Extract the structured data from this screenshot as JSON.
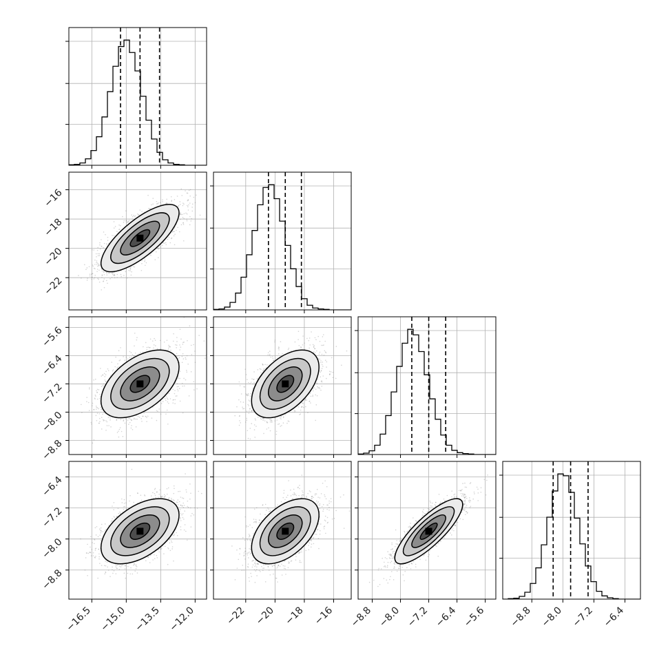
{
  "chart_data": {
    "type": "scatter",
    "layout": "corner-plot",
    "grid": true,
    "colors": {
      "ink": "#000000",
      "grid": "#b0b0b0",
      "points": "#808080",
      "fill": "#000000"
    },
    "parameters": [
      {
        "range": [
          -17.5,
          -11.5
        ],
        "mean": -14.4,
        "sd": 0.85,
        "quantiles": [
          -15.25,
          -14.4,
          -13.55
        ],
        "ticks": [
          -16.5,
          -15.0,
          -13.5,
          -12.0
        ],
        "tick_labels": [
          "−16.5",
          "−15.0",
          "−13.5",
          "−12.0"
        ]
      },
      {
        "range": [
          -24.2,
          -14.8
        ],
        "mean": -19.3,
        "sd": 1.15,
        "quantiles": [
          -20.45,
          -19.3,
          -18.2
        ],
        "ticks": [
          -22,
          -20,
          -18,
          -16
        ],
        "tick_labels": [
          "−22",
          "−20",
          "−18",
          "−16"
        ]
      },
      {
        "range": [
          -9.2,
          -5.3
        ],
        "mean": -7.2,
        "sd": 0.48,
        "quantiles": [
          -7.68,
          -7.2,
          -6.72
        ],
        "ticks": [
          -8.8,
          -8.0,
          -7.2,
          -6.4,
          -5.6
        ],
        "tick_labels": [
          "−8.8",
          "−8.0",
          "−7.2",
          "−6.4",
          "−5.6"
        ]
      },
      {
        "range": [
          -9.55,
          -6.0
        ],
        "mean": -7.8,
        "sd": 0.42,
        "quantiles": [
          -8.25,
          -7.8,
          -7.35
        ],
        "ticks": [
          -8.8,
          -8.0,
          -7.2,
          -6.4
        ],
        "tick_labels": [
          "−8.8",
          "−8.0",
          "−7.2",
          "−6.4"
        ]
      }
    ],
    "histograms": [
      {
        "parameter": 0,
        "bin_edges": [
          -17.5,
          -11.5
        ],
        "bins": 25,
        "counts": [
          1,
          2,
          5,
          14,
          32,
          62,
          105,
          160,
          215,
          258,
          272,
          245,
          205,
          150,
          98,
          57,
          28,
          12,
          5,
          2,
          1,
          0,
          0,
          0,
          0
        ]
      },
      {
        "parameter": 1,
        "bin_edges": [
          -24.2,
          -14.8
        ],
        "bins": 25,
        "counts": [
          1,
          2,
          6,
          16,
          36,
          70,
          118,
          170,
          225,
          262,
          268,
          238,
          190,
          138,
          88,
          50,
          24,
          10,
          4,
          2,
          1,
          0,
          0,
          0,
          0
        ]
      },
      {
        "parameter": 2,
        "bin_edges": [
          -9.2,
          -5.3
        ],
        "bins": 25,
        "counts": [
          1,
          3,
          8,
          20,
          44,
          84,
          135,
          190,
          240,
          270,
          258,
          222,
          172,
          120,
          76,
          42,
          20,
          9,
          4,
          2,
          1,
          0,
          0,
          0,
          0
        ]
      },
      {
        "parameter": 3,
        "bin_edges": [
          -9.55,
          -6.0
        ],
        "bins": 25,
        "counts": [
          0,
          1,
          2,
          6,
          15,
          34,
          68,
          118,
          178,
          235,
          272,
          268,
          232,
          176,
          120,
          72,
          38,
          17,
          7,
          3,
          1,
          0,
          0,
          0,
          0
        ]
      }
    ],
    "pairs": [
      {
        "x": 0,
        "y": 1,
        "correlation": 0.75
      },
      {
        "x": 0,
        "y": 2,
        "correlation": 0.5
      },
      {
        "x": 1,
        "y": 2,
        "correlation": 0.5
      },
      {
        "x": 0,
        "y": 3,
        "correlation": 0.5
      },
      {
        "x": 1,
        "y": 3,
        "correlation": 0.5
      },
      {
        "x": 2,
        "y": 3,
        "correlation": 0.82
      }
    ],
    "contour_levels_sigma": [
      0.5,
      1.0,
      1.5,
      2.0
    ],
    "points_per_panel": 2200
  }
}
